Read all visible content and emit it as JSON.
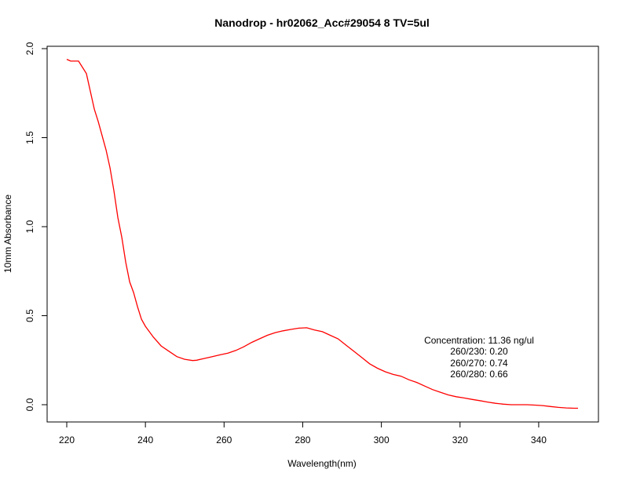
{
  "chart_data": {
    "type": "line",
    "title": "Nanodrop - hr02062_Acc#29054 8 TV=5ul",
    "xlabel": "Wavelength(nm)",
    "ylabel": "10mm Absorbance",
    "xlim": [
      220,
      350
    ],
    "ylim": [
      0.0,
      2.0
    ],
    "x_ticks": [
      220,
      240,
      260,
      280,
      300,
      320,
      340
    ],
    "x_tick_labels": [
      "220",
      "240",
      "260",
      "280",
      "300",
      "320",
      "340"
    ],
    "y_ticks": [
      0.0,
      0.5,
      1.0,
      1.5,
      2.0
    ],
    "y_tick_labels": [
      "0.0",
      "0.5",
      "1.0",
      "1.5",
      "2.0"
    ],
    "grid": false,
    "legend": "none",
    "line_color": "#ff0000",
    "series": [
      {
        "x": [
          220,
          221,
          223,
          225,
          227,
          228,
          230,
          231,
          232,
          233,
          234,
          235,
          236,
          237,
          238,
          239,
          240,
          242,
          244,
          246,
          248,
          250,
          252,
          253,
          255,
          257,
          259,
          261,
          263,
          265,
          267,
          269,
          271,
          273,
          275,
          277,
          279,
          281,
          283,
          285,
          287,
          289,
          291,
          293,
          295,
          297,
          299,
          301,
          303,
          305,
          307,
          309,
          311,
          313,
          315,
          317,
          319,
          321,
          323,
          325,
          327,
          329,
          331,
          333,
          335,
          337,
          339,
          341,
          343,
          345,
          347,
          349,
          350
        ],
        "y": [
          1.94,
          1.93,
          1.93,
          1.86,
          1.66,
          1.59,
          1.43,
          1.33,
          1.2,
          1.05,
          0.94,
          0.8,
          0.69,
          0.63,
          0.55,
          0.48,
          0.44,
          0.38,
          0.33,
          0.3,
          0.27,
          0.255,
          0.248,
          0.25,
          0.26,
          0.27,
          0.28,
          0.29,
          0.305,
          0.325,
          0.35,
          0.37,
          0.39,
          0.405,
          0.415,
          0.423,
          0.43,
          0.432,
          0.42,
          0.41,
          0.39,
          0.37,
          0.335,
          0.3,
          0.265,
          0.23,
          0.205,
          0.185,
          0.17,
          0.16,
          0.14,
          0.125,
          0.105,
          0.085,
          0.07,
          0.055,
          0.045,
          0.038,
          0.03,
          0.023,
          0.015,
          0.008,
          0.003,
          0.0,
          0.0,
          0.0,
          -0.002,
          -0.005,
          -0.01,
          -0.015,
          -0.018,
          -0.02,
          -0.02
        ]
      }
    ],
    "annotation": {
      "concentration": "Concentration: 11.36 ng/ul",
      "r230": "260/230: 0.20",
      "r270": "260/270: 0.74",
      "r280": "260/280: 0.66"
    }
  }
}
